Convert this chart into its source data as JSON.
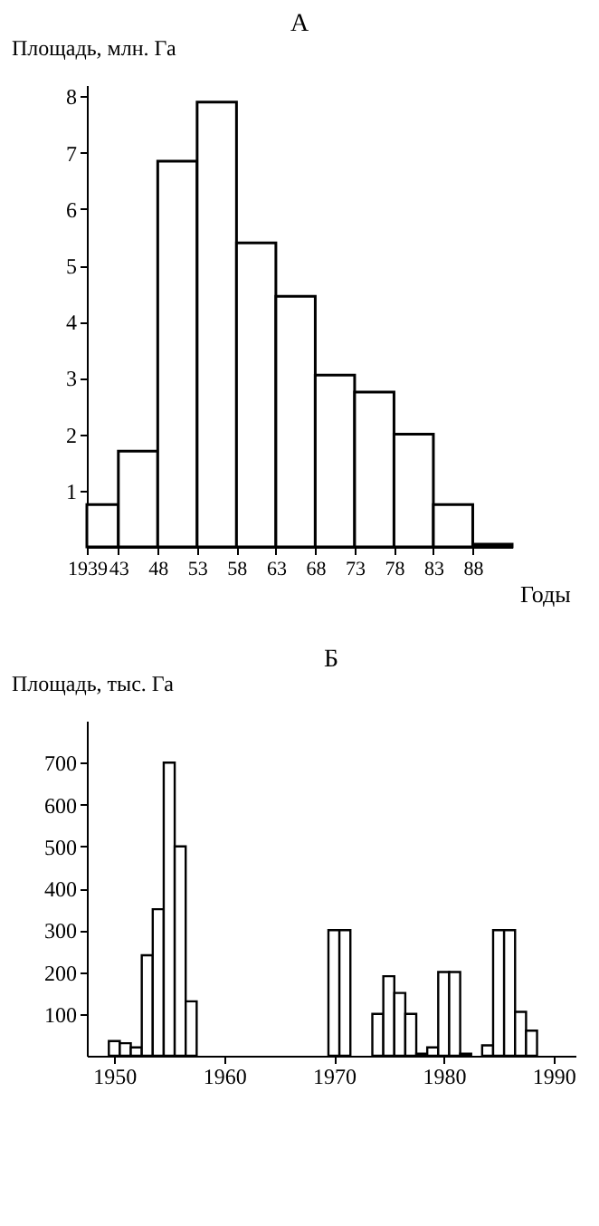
{
  "chart_data": [
    {
      "type": "histogram",
      "title": "А",
      "xlabel": "Годы",
      "ylabel": "Площадь, млн. Га",
      "bins": [
        1939,
        1943,
        1948,
        1953,
        1958,
        1963,
        1968,
        1973,
        1978,
        1983,
        1988,
        1993
      ],
      "values": [
        0.75,
        1.7,
        6.85,
        7.9,
        5.4,
        4.45,
        3.05,
        2.75,
        2.0,
        0.75,
        0.05
      ],
      "xlim": [
        1939,
        1993
      ],
      "ylim": [
        0,
        8.2
      ],
      "xticks": [
        1939,
        {
          "value": 1943,
          "label": "43"
        },
        {
          "value": 1948,
          "label": "48"
        },
        {
          "value": 1953,
          "label": "53"
        },
        {
          "value": 1958,
          "label": "58"
        },
        {
          "value": 1963,
          "label": "63"
        },
        {
          "value": 1968,
          "label": "68"
        },
        {
          "value": 1973,
          "label": "73"
        },
        {
          "value": 1978,
          "label": "78"
        },
        {
          "value": 1983,
          "label": "83"
        },
        {
          "value": 1988,
          "label": "88"
        }
      ],
      "yticks": [
        1,
        2,
        3,
        4,
        5,
        6,
        7,
        8
      ]
    },
    {
      "type": "bar",
      "title": "Б",
      "ylabel": "Площадь, тыс. Га",
      "x": [
        1950,
        1951,
        1952,
        1953,
        1954,
        1955,
        1956,
        1957,
        1970,
        1971,
        1974,
        1975,
        1976,
        1977,
        1978,
        1979,
        1980,
        1981,
        1982,
        1984,
        1985,
        1986,
        1987,
        1988
      ],
      "values": [
        35,
        30,
        20,
        240,
        350,
        700,
        500,
        130,
        300,
        300,
        100,
        190,
        150,
        100,
        5,
        20,
        200,
        200,
        5,
        25,
        300,
        300,
        105,
        60
      ],
      "xlim": [
        1947.5,
        1992
      ],
      "ylim": [
        0,
        800
      ],
      "xticks": [
        1950,
        1960,
        1970,
        1980,
        1990
      ],
      "yticks": [
        100,
        200,
        300,
        400,
        500,
        600,
        700
      ]
    }
  ]
}
